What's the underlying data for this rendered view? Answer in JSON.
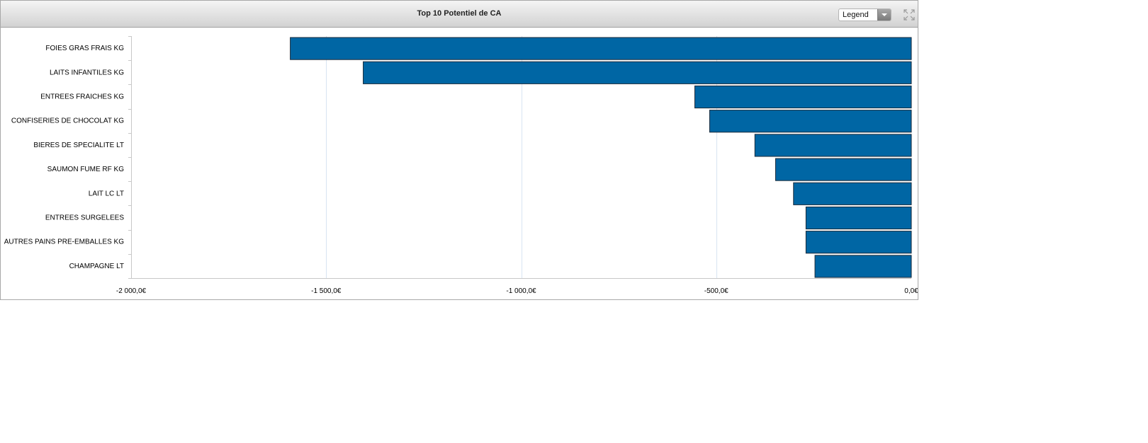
{
  "panel": {
    "title": "Top 10 Potentiel de CA",
    "legend_select": {
      "value": "Legend",
      "icon": "chevron-down-icon"
    },
    "expand_icon": "expand-icon"
  },
  "colors": {
    "bar": "#0066a4",
    "bar_border": "#1a2a3a",
    "grid": "#d8e4f2"
  },
  "chart_data": {
    "type": "bar",
    "orientation": "horizontal",
    "title": "Top 10 Potentiel de CA",
    "xlabel": "",
    "ylabel": "",
    "categories": [
      "FOIES GRAS FRAIS KG",
      "LAITS INFANTILES KG",
      "ENTREES FRAICHES KG",
      "CONFISERIES DE CHOCOLAT KG",
      "BIERES DE SPECIALITE LT",
      "SAUMON FUME RF KG",
      "LAIT LC LT",
      "ENTREES SURGELEES",
      "AUTRES PAINS PRE-EMBALLES KG",
      "CHAMPAGNE LT"
    ],
    "values": [
      -1592,
      -1405,
      -555,
      -517,
      -401,
      -348,
      -302,
      -270,
      -270,
      -247
    ],
    "xlim": [
      -2000,
      0
    ],
    "xticks": [
      -2000,
      -1500,
      -1000,
      -500,
      0
    ],
    "xtick_labels": [
      "-2 000,0€",
      "-1 500,0€",
      "-1 000,0€",
      "-500,0€",
      "0,0€"
    ],
    "grid": true,
    "legend": "none"
  }
}
